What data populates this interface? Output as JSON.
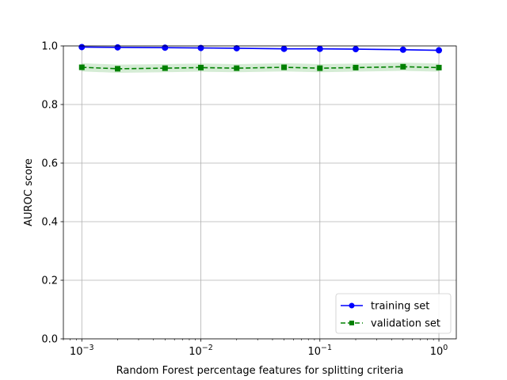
{
  "chart_data": {
    "type": "line",
    "title": "",
    "xlabel": "Random Forest percentage features for splitting criteria",
    "ylabel": "AUROC score",
    "xscale": "log",
    "xlim": [
      0.0007,
      1.4
    ],
    "ylim": [
      0.0,
      1.0
    ],
    "grid": true,
    "legend_position": "lower-right",
    "x": [
      0.001,
      0.002,
      0.005,
      0.01,
      0.02,
      0.05,
      0.1,
      0.2,
      0.5,
      1.0
    ],
    "x_ticks": [
      {
        "value": 0.001,
        "base": "10",
        "exp": "−3"
      },
      {
        "value": 0.01,
        "base": "10",
        "exp": "−2"
      },
      {
        "value": 0.1,
        "base": "10",
        "exp": "−1"
      },
      {
        "value": 1.0,
        "base": "10",
        "exp": "0"
      }
    ],
    "y_ticks": [
      "0.0",
      "0.2",
      "0.4",
      "0.6",
      "0.8",
      "1.0"
    ],
    "series": [
      {
        "name": "training set",
        "color": "#0000ff",
        "marker": "circle",
        "linestyle": "solid",
        "values": [
          0.996,
          0.995,
          0.994,
          0.993,
          0.992,
          0.99,
          0.99,
          0.989,
          0.987,
          0.985
        ],
        "band_lower": [
          0.994,
          0.993,
          0.992,
          0.991,
          0.99,
          0.988,
          0.988,
          0.987,
          0.985,
          0.983
        ],
        "band_upper": [
          0.998,
          0.997,
          0.996,
          0.995,
          0.994,
          0.992,
          0.992,
          0.991,
          0.989,
          0.987
        ],
        "band_color": "#0000ff"
      },
      {
        "name": "validation set",
        "color": "#008000",
        "marker": "square",
        "linestyle": "dashed",
        "values": [
          0.927,
          0.922,
          0.924,
          0.926,
          0.924,
          0.927,
          0.924,
          0.926,
          0.929,
          0.926
        ],
        "band_lower": [
          0.913,
          0.908,
          0.91,
          0.912,
          0.91,
          0.913,
          0.91,
          0.912,
          0.915,
          0.912
        ],
        "band_upper": [
          0.941,
          0.936,
          0.938,
          0.94,
          0.938,
          0.941,
          0.938,
          0.94,
          0.943,
          0.94
        ],
        "band_color": "#2ca02c"
      }
    ]
  }
}
